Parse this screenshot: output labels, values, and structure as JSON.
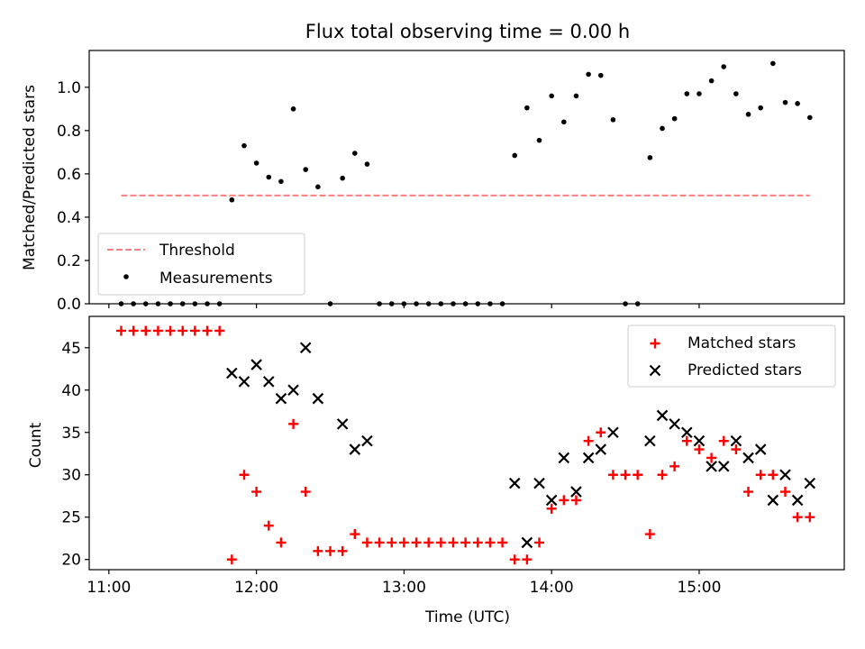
{
  "chart_data": [
    {
      "type": "scatter",
      "title": "Flux total observing time = 0.00 h",
      "xlabel": "",
      "ylabel": "Matched/Predicted stars",
      "xlim": [
        "10:52",
        "15:59"
      ],
      "ylim": [
        0,
        1.17
      ],
      "x_ticks": [
        "11:00",
        "12:00",
        "13:00",
        "14:00",
        "15:00"
      ],
      "y_ticks": [
        "0.0",
        "0.2",
        "0.4",
        "0.6",
        "0.8",
        "1.0"
      ],
      "x_tick_labels_shown": false,
      "legend_position": "lower-left",
      "threshold": {
        "name": "Threshold",
        "value": 0.5,
        "x_start": "11:05",
        "x_end": "15:45",
        "color": "#ff7f7f",
        "style": "dashed"
      },
      "series": [
        {
          "name": "Measurements",
          "color": "#000000",
          "marker": "dot",
          "points": [
            [
              "11:05",
              0
            ],
            [
              "11:10",
              0
            ],
            [
              "11:15",
              0
            ],
            [
              "11:20",
              0
            ],
            [
              "11:25",
              0
            ],
            [
              "11:30",
              0
            ],
            [
              "11:35",
              0
            ],
            [
              "11:40",
              0
            ],
            [
              "11:45",
              0
            ],
            [
              "11:50",
              0.48
            ],
            [
              "11:55",
              0.73
            ],
            [
              "12:00",
              0.65
            ],
            [
              "12:05",
              0.585
            ],
            [
              "12:10",
              0.565
            ],
            [
              "12:15",
              0.9
            ],
            [
              "12:20",
              0.62
            ],
            [
              "12:25",
              0.54
            ],
            [
              "12:30",
              0
            ],
            [
              "12:35",
              0.58
            ],
            [
              "12:40",
              0.695
            ],
            [
              "12:45",
              0.645
            ],
            [
              "12:50",
              0
            ],
            [
              "12:55",
              0
            ],
            [
              "13:00",
              0
            ],
            [
              "13:05",
              0
            ],
            [
              "13:10",
              0
            ],
            [
              "13:15",
              0
            ],
            [
              "13:20",
              0
            ],
            [
              "13:25",
              0
            ],
            [
              "13:30",
              0
            ],
            [
              "13:35",
              0
            ],
            [
              "13:40",
              0
            ],
            [
              "13:45",
              0.685
            ],
            [
              "13:50",
              0.905
            ],
            [
              "13:55",
              0.755
            ],
            [
              "14:00",
              0.96
            ],
            [
              "14:05",
              0.84
            ],
            [
              "14:10",
              0.96
            ],
            [
              "14:15",
              1.06
            ],
            [
              "14:20",
              1.055
            ],
            [
              "14:25",
              0.85
            ],
            [
              "14:30",
              0
            ],
            [
              "14:35",
              0
            ],
            [
              "14:40",
              0.675
            ],
            [
              "14:45",
              0.81
            ],
            [
              "14:50",
              0.855
            ],
            [
              "14:55",
              0.97
            ],
            [
              "15:00",
              0.97
            ],
            [
              "15:05",
              1.03
            ],
            [
              "15:10",
              1.095
            ],
            [
              "15:15",
              0.97
            ],
            [
              "15:20",
              0.875
            ],
            [
              "15:25",
              0.905
            ],
            [
              "15:30",
              1.11
            ],
            [
              "15:35",
              0.93
            ],
            [
              "15:40",
              0.925
            ],
            [
              "15:45",
              0.86
            ]
          ]
        }
      ]
    },
    {
      "type": "scatter",
      "title": "",
      "xlabel": "Time (UTC)",
      "ylabel": "Count",
      "xlim": [
        "10:52",
        "15:59"
      ],
      "ylim": [
        18.8,
        48.7
      ],
      "x_ticks": [
        "11:00",
        "12:00",
        "13:00",
        "14:00",
        "15:00"
      ],
      "y_ticks": [
        "20",
        "25",
        "30",
        "35",
        "40",
        "45"
      ],
      "legend_position": "upper-right",
      "series": [
        {
          "name": "Matched stars",
          "color": "#ff0000",
          "marker": "plus",
          "points": [
            [
              "11:05",
              47
            ],
            [
              "11:10",
              47
            ],
            [
              "11:15",
              47
            ],
            [
              "11:20",
              47
            ],
            [
              "11:25",
              47
            ],
            [
              "11:30",
              47
            ],
            [
              "11:35",
              47
            ],
            [
              "11:40",
              47
            ],
            [
              "11:45",
              47
            ],
            [
              "11:50",
              20
            ],
            [
              "11:55",
              30
            ],
            [
              "12:00",
              28
            ],
            [
              "12:05",
              24
            ],
            [
              "12:10",
              22
            ],
            [
              "12:15",
              36
            ],
            [
              "12:20",
              28
            ],
            [
              "12:25",
              21
            ],
            [
              "12:30",
              21
            ],
            [
              "12:35",
              21
            ],
            [
              "12:40",
              23
            ],
            [
              "12:45",
              22
            ],
            [
              "12:50",
              22
            ],
            [
              "12:55",
              22
            ],
            [
              "13:00",
              22
            ],
            [
              "13:05",
              22
            ],
            [
              "13:10",
              22
            ],
            [
              "13:15",
              22
            ],
            [
              "13:20",
              22
            ],
            [
              "13:25",
              22
            ],
            [
              "13:30",
              22
            ],
            [
              "13:35",
              22
            ],
            [
              "13:40",
              22
            ],
            [
              "13:45",
              20
            ],
            [
              "13:50",
              20
            ],
            [
              "13:55",
              22
            ],
            [
              "14:00",
              26
            ],
            [
              "14:05",
              27
            ],
            [
              "14:10",
              27
            ],
            [
              "14:15",
              34
            ],
            [
              "14:20",
              35
            ],
            [
              "14:25",
              30
            ],
            [
              "14:30",
              30
            ],
            [
              "14:35",
              30
            ],
            [
              "14:40",
              23
            ],
            [
              "14:45",
              30
            ],
            [
              "14:50",
              31
            ],
            [
              "14:55",
              34
            ],
            [
              "15:00",
              33
            ],
            [
              "15:05",
              32
            ],
            [
              "15:10",
              34
            ],
            [
              "15:15",
              33
            ],
            [
              "15:20",
              28
            ],
            [
              "15:25",
              30
            ],
            [
              "15:30",
              30
            ],
            [
              "15:35",
              28
            ],
            [
              "15:40",
              25
            ],
            [
              "15:45",
              25
            ]
          ]
        },
        {
          "name": "Predicted stars",
          "color": "#000000",
          "marker": "x",
          "points": [
            [
              "11:50",
              42
            ],
            [
              "11:55",
              41
            ],
            [
              "12:00",
              43
            ],
            [
              "12:05",
              41
            ],
            [
              "12:10",
              39
            ],
            [
              "12:15",
              40
            ],
            [
              "12:20",
              45
            ],
            [
              "12:25",
              39
            ],
            [
              "12:35",
              36
            ],
            [
              "12:40",
              33
            ],
            [
              "12:45",
              34
            ],
            [
              "13:45",
              29
            ],
            [
              "13:50",
              22
            ],
            [
              "13:55",
              29
            ],
            [
              "14:00",
              27
            ],
            [
              "14:05",
              32
            ],
            [
              "14:10",
              28
            ],
            [
              "14:15",
              32
            ],
            [
              "14:20",
              33
            ],
            [
              "14:25",
              35
            ],
            [
              "14:40",
              34
            ],
            [
              "14:45",
              37
            ],
            [
              "14:50",
              36
            ],
            [
              "14:55",
              35
            ],
            [
              "15:00",
              34
            ],
            [
              "15:05",
              31
            ],
            [
              "15:10",
              31
            ],
            [
              "15:15",
              34
            ],
            [
              "15:20",
              32
            ],
            [
              "15:25",
              33
            ],
            [
              "15:30",
              27
            ],
            [
              "15:35",
              30
            ],
            [
              "15:40",
              27
            ],
            [
              "15:45",
              29
            ]
          ]
        }
      ]
    }
  ]
}
